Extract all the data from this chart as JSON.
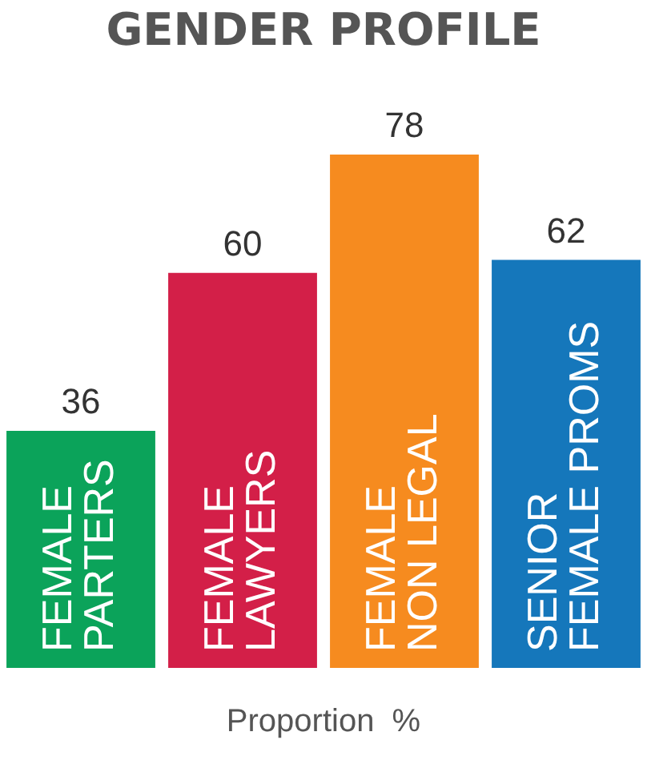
{
  "chart_data": {
    "type": "bar",
    "title": "GENDER PROFILE",
    "xlabel": "Proportion  %",
    "categories": [
      "FEMALE PARTERS",
      "FEMALE LAWYERS",
      "FEMALE NON LEGAL",
      "SENIOR FEMALE PROMS"
    ],
    "values": [
      36,
      60,
      78,
      62
    ],
    "colors": [
      "#0ba35a",
      "#d31f48",
      "#f68b1f",
      "#1577bb"
    ],
    "data_labels": true,
    "grid": false,
    "legend": false
  }
}
